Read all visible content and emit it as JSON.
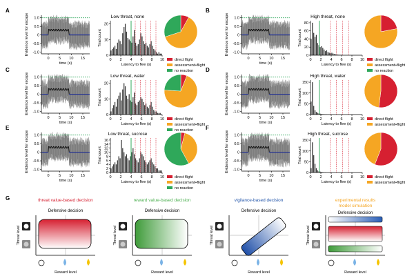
{
  "figure": {
    "panels": [
      {
        "letter": "A",
        "title": "Low threat, none",
        "legend": [
          "direct flight",
          "assessment+flight",
          "no reaction"
        ],
        "hist_yticks": [
          "0",
          "10",
          "20"
        ],
        "hist_ymax": 22,
        "hist_values": [
          3,
          4,
          5,
          6,
          4,
          8,
          10,
          9,
          7,
          14,
          18,
          20,
          15,
          11,
          10,
          9,
          8,
          12,
          16,
          8,
          6,
          7,
          10,
          14,
          12,
          9,
          7,
          8,
          6,
          5,
          7,
          9,
          6,
          4,
          3,
          2,
          1,
          2,
          1,
          1
        ],
        "pie": [
          {
            "label": "direct flight",
            "value": 8,
            "color": "#d62031"
          },
          {
            "label": "assessment+flight",
            "value": 62,
            "color": "#f5a623"
          },
          {
            "label": "no reaction",
            "value": 30,
            "color": "#2fa85a"
          }
        ]
      },
      {
        "letter": "B",
        "title": "High threat, none",
        "legend": [
          "direct flight",
          "assessment+flight",
          "no reaction"
        ],
        "hist_yticks": [
          "0",
          "20",
          "40",
          "60",
          "80"
        ],
        "hist_ymax": 85,
        "hist_values": [
          40,
          80,
          55,
          45,
          50,
          30,
          25,
          20,
          22,
          18,
          14,
          10,
          12,
          8,
          6,
          5,
          6,
          4,
          3,
          2,
          2,
          1,
          1,
          1,
          1,
          0,
          0,
          0,
          0,
          0,
          0,
          0,
          0,
          0,
          0,
          0,
          0,
          0,
          0,
          0
        ],
        "pie": [
          {
            "label": "direct flight",
            "value": 22,
            "color": "#d62031"
          },
          {
            "label": "assessment+flight",
            "value": 78,
            "color": "#f5a623"
          },
          {
            "label": "no reaction",
            "value": 0,
            "color": "#2fa85a"
          }
        ]
      },
      {
        "letter": "C",
        "title": "Low threat, water",
        "legend": [
          "direct flight",
          "assessment+flight",
          "no reaction"
        ],
        "hist_yticks": [
          "0",
          "10",
          "20"
        ],
        "hist_ymax": 22,
        "hist_values": [
          2,
          4,
          6,
          8,
          5,
          10,
          12,
          14,
          9,
          16,
          20,
          18,
          12,
          10,
          13,
          9,
          8,
          11,
          14,
          7,
          6,
          8,
          9,
          11,
          10,
          8,
          6,
          7,
          5,
          4,
          6,
          8,
          5,
          3,
          2,
          2,
          1,
          1,
          1,
          0
        ],
        "pie": [
          {
            "label": "direct flight",
            "value": 6,
            "color": "#d62031"
          },
          {
            "label": "assessment+flight",
            "value": 70,
            "color": "#f5a623"
          },
          {
            "label": "no reaction",
            "value": 24,
            "color": "#2fa85a"
          }
        ]
      },
      {
        "letter": "D",
        "title": "High threat, water",
        "legend": [
          "direct flight",
          "assessment+flight"
        ],
        "hist_yticks": [
          "0",
          "50",
          "100",
          "150"
        ],
        "hist_ymax": 160,
        "hist_values": [
          60,
          150,
          40,
          20,
          12,
          8,
          6,
          4,
          3,
          2,
          2,
          1,
          1,
          1,
          0,
          0,
          0,
          0,
          0,
          0,
          0,
          0,
          0,
          0,
          0,
          0,
          0,
          0,
          0,
          0,
          0,
          0,
          0,
          0,
          0,
          0,
          0,
          0,
          0,
          0
        ],
        "pie": [
          {
            "label": "direct flight",
            "value": 52,
            "color": "#d62031"
          },
          {
            "label": "assessment+flight",
            "value": 48,
            "color": "#f5a623"
          }
        ]
      },
      {
        "letter": "E",
        "title": "Low threat, sucrose",
        "legend": [
          "direct flight",
          "assessment+flight",
          "no reaction"
        ],
        "hist_yticks": [
          "0",
          "2",
          "4",
          "6",
          "8",
          "10",
          "12",
          "14",
          "16"
        ],
        "hist_ymax": 17,
        "hist_values": [
          2,
          3,
          4,
          5,
          4,
          6,
          8,
          7,
          16,
          12,
          10,
          8,
          9,
          7,
          6,
          8,
          10,
          12,
          9,
          7,
          6,
          5,
          7,
          10,
          9,
          8,
          6,
          5,
          4,
          5,
          6,
          7,
          5,
          4,
          3,
          2,
          2,
          1,
          1,
          1
        ],
        "pie": [
          {
            "label": "direct flight",
            "value": 4,
            "color": "#d62031"
          },
          {
            "label": "assessment+flight",
            "value": 38,
            "color": "#f5a623"
          },
          {
            "label": "no reaction",
            "value": 58,
            "color": "#2fa85a"
          }
        ]
      },
      {
        "letter": "F",
        "title": "High threat, sucrose",
        "legend": [
          "direct flight",
          "assessment+flight"
        ],
        "hist_yticks": [
          "0",
          "50",
          "100",
          "150"
        ],
        "hist_ymax": 160,
        "hist_values": [
          20,
          140,
          80,
          40,
          20,
          10,
          6,
          4,
          3,
          2,
          1,
          1,
          0,
          0,
          0,
          0,
          0,
          0,
          0,
          0,
          0,
          0,
          0,
          0,
          0,
          0,
          0,
          0,
          0,
          0,
          0,
          0,
          0,
          0,
          0,
          0,
          0,
          0,
          0,
          0
        ],
        "pie": [
          {
            "label": "direct flight",
            "value": 56,
            "color": "#d62031"
          },
          {
            "label": "assessment+flight",
            "value": 44,
            "color": "#f5a623"
          }
        ]
      }
    ],
    "evidence_ylabel": "Evidence level for escape",
    "evidence_yticks": [
      "1.0",
      "0.5",
      "0",
      "-0.5",
      "-1.0"
    ],
    "evidence_xticks": [
      "0",
      "5",
      "10",
      "15"
    ],
    "evidence_xlabel": "time (s)",
    "hist_xticks": [
      "0",
      "2",
      "4",
      "6",
      "8",
      "10"
    ],
    "hist_xlabel": "Latency to flee (s)",
    "hist_ylabel": "Trial count",
    "section_g": {
      "letter": "G",
      "models": [
        {
          "title": "threat value-based decision",
          "title_color": "#d62031"
        },
        {
          "title": "reward value-based decision",
          "title_color": "#4caf50"
        },
        {
          "title": "vigilance-based decision",
          "title_color": "#2255aa"
        },
        {
          "title": "experimental results",
          "title2": "model simulation",
          "title_color": "#f5a623"
        }
      ],
      "defensive_decision": "Defensive decision",
      "threat_level": "Threat level",
      "reward_level": "Reward level"
    }
  }
}
